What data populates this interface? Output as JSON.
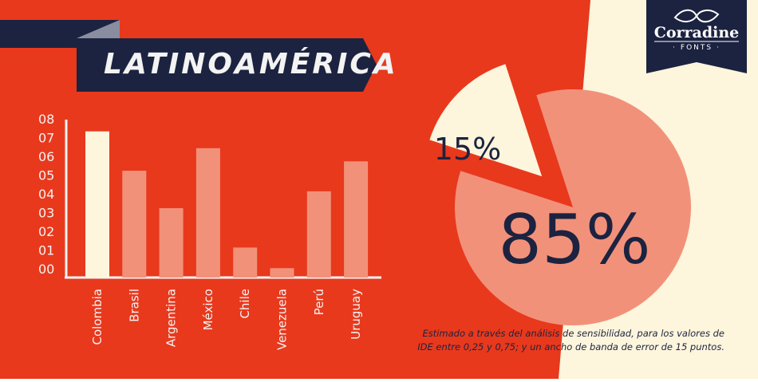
{
  "colors": {
    "background_red": "#e8391d",
    "cream": "#fdf5dc",
    "navy": "#1c2340",
    "salmon": "#f2917a",
    "gray": "#8a8da0",
    "white": "#f3f3f3"
  },
  "banner": {
    "title": "LATINOAMÉRICA"
  },
  "logo": {
    "name": "Corradine",
    "sub": "· FONTS ·"
  },
  "footnote": {
    "line1": "Estimado a través del análisis de sensibilidad, para los valores de",
    "line2": "IDE entre 0,25 y 0,75;  y un ancho de banda de error de 15 puntos."
  },
  "chart_data": [
    {
      "type": "bar",
      "categories": [
        "Colombia",
        "Brasil",
        "Argentina",
        "México",
        "Chile",
        "Venezuela",
        "Perú",
        "Uruguay"
      ],
      "values": [
        7.8,
        5.7,
        3.7,
        6.9,
        1.6,
        0.5,
        4.6,
        6.2
      ],
      "highlight": "Colombia",
      "ylim": [
        0,
        8
      ],
      "ytick_labels": [
        "00",
        "01",
        "02",
        "03",
        "04",
        "05",
        "06",
        "07",
        "08"
      ],
      "xlabel": "",
      "ylabel": "",
      "grid": false
    },
    {
      "type": "pie",
      "labels": [
        "15%",
        "85%"
      ],
      "values": [
        15,
        85
      ],
      "exploded": "15%",
      "colors": [
        "#fdf5dc",
        "#f2917a"
      ]
    }
  ]
}
